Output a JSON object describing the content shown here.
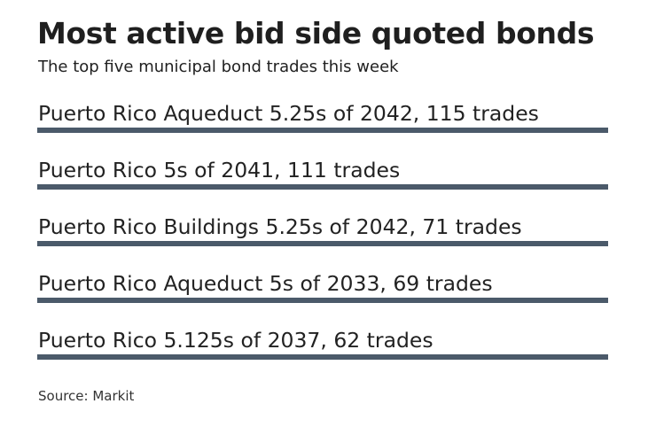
{
  "header": {
    "title": "Most active bid side quoted bonds",
    "subtitle": "The top five municipal bond trades this week"
  },
  "footer": {
    "source": "Source: Markit"
  },
  "colors": {
    "bar": "#4b5a6a",
    "text": "#1f1f1f"
  },
  "chart_data": {
    "type": "bar",
    "title": "Most active bid side quoted bonds",
    "subtitle": "The top five municipal bond trades this week",
    "categories": [
      "Puerto Rico Aqueduct 5.25s of 2042",
      "Puerto Rico 5s of 2041",
      "Puerto Rico Buildings 5.25s of 2042",
      "Puerto Rico Aqueduct 5s of 2033",
      "Puerto Rico 5.125s of 2037"
    ],
    "values": [
      115,
      111,
      71,
      69,
      62
    ],
    "labels": [
      "Puerto Rico Aqueduct 5.25s of 2042, 115 trades",
      "Puerto Rico 5s of 2041, 111 trades",
      "Puerto Rico Buildings 5.25s of 2042, 71 trades",
      "Puerto Rico Aqueduct 5s of 2033, 69 trades",
      "Puerto Rico 5.125s of 2037, 62 trades"
    ],
    "unit": "trades",
    "source": "Source: Markit",
    "grid": false,
    "legend": "none"
  }
}
